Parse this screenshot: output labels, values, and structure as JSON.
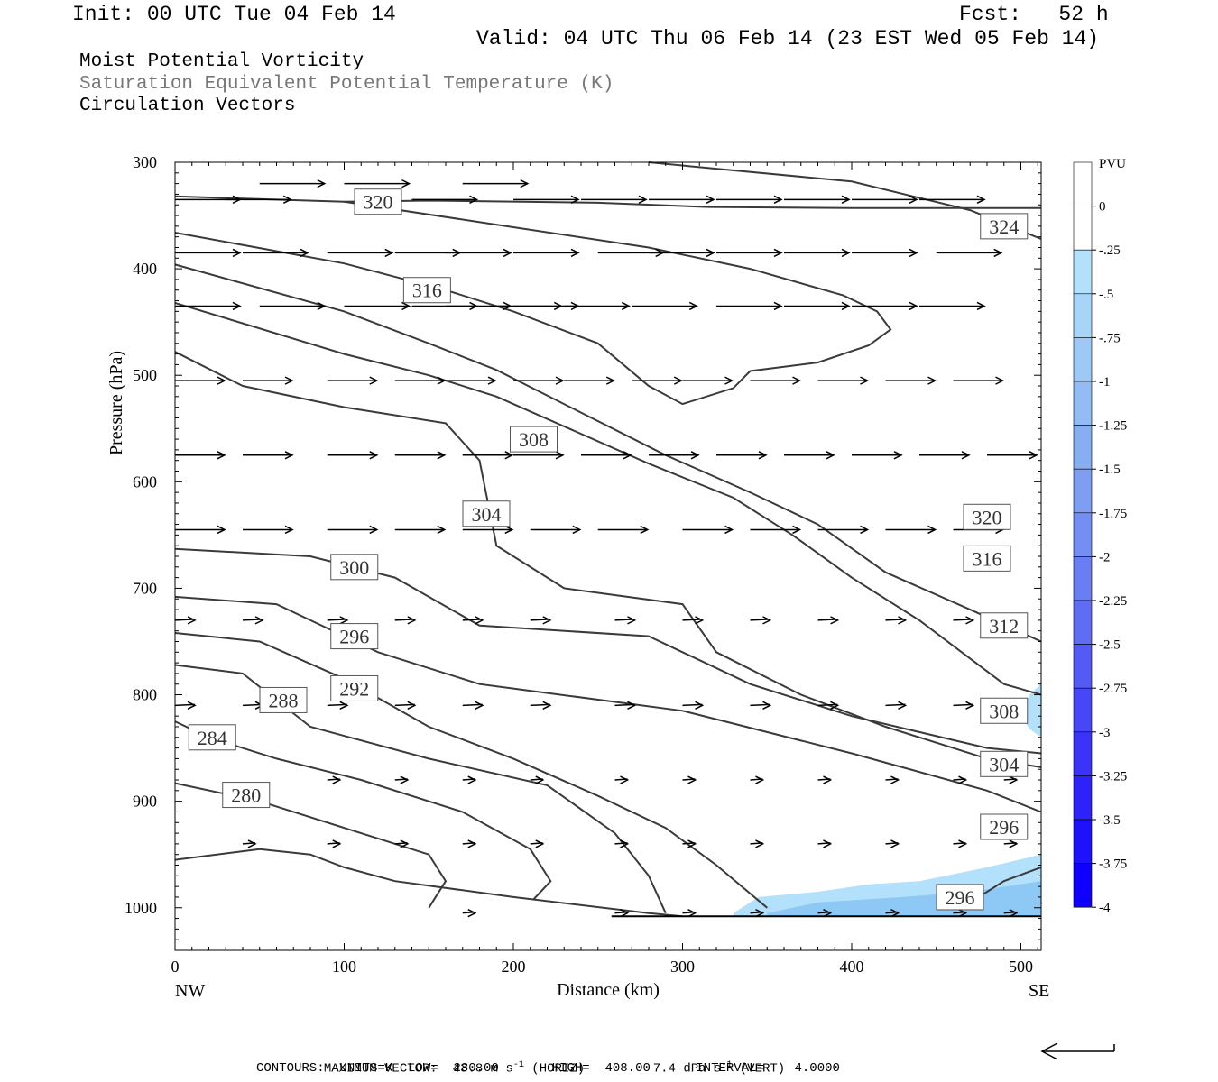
{
  "header": {
    "init": "Init: 00 UTC Tue 04 Feb 14",
    "fcst": "Fcst:   52 h",
    "valid": "Valid: 04 UTC Thu 06 Feb 14 (23 EST Wed 05 Feb 14)",
    "field1": "Moist Potential Vorticity",
    "field2": "Saturation Equivalent Potential Temperature (K)",
    "field3": "Circulation Vectors"
  },
  "footer": {
    "max_vector_label": "MAXIMUM VECTOR:",
    "max_h": "43.8 m s",
    "max_h_unit": "(HORIZ)",
    "max_v": "7.4 dPa s",
    "max_v_unit": "(VERT)",
    "contours": "CONTOURS:  UNITS=K  LOW=  280.00       HIGH=  408.00      INTERVAL=    4.0000"
  },
  "colors": {
    "contour": "#3a3a3a",
    "pv_light": "#b3e0fa",
    "pv_mid": "#8ec8f5"
  },
  "chart_data": {
    "type": "contour",
    "xlabel": "Distance (km)",
    "ylabel": "Pressure (hPa)",
    "x_endpoints": [
      "NW",
      "SE"
    ],
    "xlim": [
      0,
      512
    ],
    "ylim": [
      1040,
      300
    ],
    "xticks": [
      0,
      100,
      200,
      300,
      400,
      500
    ],
    "yticks": [
      300,
      400,
      500,
      600,
      700,
      800,
      900,
      1000
    ],
    "contour_labels": [
      {
        "text": "320",
        "x": 120,
        "p": 337
      },
      {
        "text": "324",
        "x": 490,
        "p": 360
      },
      {
        "text": "316",
        "x": 149,
        "p": 420
      },
      {
        "text": "308",
        "x": 212,
        "p": 560
      },
      {
        "text": "304",
        "x": 184,
        "p": 630
      },
      {
        "text": "320",
        "x": 480,
        "p": 633
      },
      {
        "text": "316",
        "x": 480,
        "p": 672
      },
      {
        "text": "300",
        "x": 106,
        "p": 680
      },
      {
        "text": "312",
        "x": 490,
        "p": 735
      },
      {
        "text": "296",
        "x": 106,
        "p": 745
      },
      {
        "text": "292",
        "x": 106,
        "p": 794
      },
      {
        "text": "288",
        "x": 64,
        "p": 805
      },
      {
        "text": "308",
        "x": 490,
        "p": 815
      },
      {
        "text": "284",
        "x": 22,
        "p": 840
      },
      {
        "text": "304",
        "x": 490,
        "p": 865
      },
      {
        "text": "280",
        "x": 42,
        "p": 894
      },
      {
        "text": "296",
        "x": 490,
        "p": 924
      },
      {
        "text": "296",
        "x": 464,
        "p": 990
      }
    ],
    "contours": [
      {
        "level": 320,
        "points": [
          [
            0,
            332
          ],
          [
            100,
            337
          ],
          [
            150,
            336
          ],
          [
            250,
            338
          ],
          [
            315,
            342
          ],
          [
            400,
            343
          ],
          [
            512,
            343
          ]
        ]
      },
      {
        "level": 324,
        "points": [
          [
            280,
            300
          ],
          [
            400,
            318
          ],
          [
            470,
            345
          ],
          [
            512,
            372
          ]
        ]
      },
      {
        "level": 316,
        "points": [
          [
            0,
            366
          ],
          [
            100,
            395
          ],
          [
            160,
            420
          ],
          [
            200,
            440
          ],
          [
            250,
            470
          ],
          [
            280,
            510
          ],
          [
            300,
            527
          ],
          [
            330,
            512
          ],
          [
            340,
            496
          ],
          [
            380,
            488
          ],
          [
            410,
            472
          ],
          [
            423,
            457
          ],
          [
            415,
            440
          ],
          [
            395,
            425
          ],
          [
            340,
            400
          ],
          [
            280,
            380
          ],
          [
            200,
            361
          ],
          [
            100,
            337
          ]
        ]
      },
      {
        "level": 312,
        "points": [
          [
            0,
            396
          ],
          [
            100,
            440
          ],
          [
            150,
            470
          ],
          [
            190,
            495
          ],
          [
            240,
            535
          ],
          [
            290,
            575
          ],
          [
            340,
            610
          ],
          [
            380,
            640
          ],
          [
            420,
            685
          ],
          [
            470,
            720
          ],
          [
            512,
            750
          ]
        ]
      },
      {
        "level": 308,
        "points": [
          [
            0,
            432
          ],
          [
            100,
            480
          ],
          [
            150,
            500
          ],
          [
            190,
            520
          ],
          [
            230,
            548
          ],
          [
            280,
            583
          ],
          [
            330,
            615
          ],
          [
            365,
            650
          ],
          [
            400,
            690
          ],
          [
            440,
            730
          ],
          [
            490,
            790
          ],
          [
            512,
            800
          ]
        ]
      },
      {
        "level": 304,
        "points": [
          [
            0,
            478
          ],
          [
            40,
            510
          ],
          [
            100,
            530
          ],
          [
            160,
            545
          ],
          [
            180,
            580
          ],
          [
            190,
            660
          ],
          [
            230,
            700
          ],
          [
            300,
            715
          ],
          [
            320,
            760
          ],
          [
            370,
            800
          ],
          [
            420,
            830
          ],
          [
            480,
            860
          ],
          [
            512,
            868
          ]
        ]
      },
      {
        "level": 300,
        "points": [
          [
            0,
            663
          ],
          [
            80,
            670
          ],
          [
            130,
            690
          ],
          [
            180,
            735
          ],
          [
            280,
            745
          ],
          [
            340,
            790
          ],
          [
            400,
            820
          ],
          [
            480,
            850
          ],
          [
            512,
            855
          ]
        ]
      },
      {
        "level": 296,
        "points": [
          [
            0,
            708
          ],
          [
            60,
            715
          ],
          [
            120,
            760
          ],
          [
            180,
            790
          ],
          [
            300,
            815
          ],
          [
            400,
            855
          ],
          [
            480,
            890
          ],
          [
            512,
            910
          ]
        ]
      },
      {
        "level": 292,
        "points": [
          [
            0,
            742
          ],
          [
            50,
            750
          ],
          [
            100,
            785
          ],
          [
            150,
            830
          ],
          [
            200,
            860
          ],
          [
            250,
            895
          ],
          [
            290,
            925
          ],
          [
            320,
            960
          ],
          [
            350,
            1000
          ]
        ]
      },
      {
        "level": 288,
        "points": [
          [
            0,
            772
          ],
          [
            40,
            780
          ],
          [
            80,
            830
          ],
          [
            150,
            860
          ],
          [
            220,
            885
          ],
          [
            260,
            930
          ],
          [
            280,
            970
          ],
          [
            290,
            1005
          ]
        ]
      },
      {
        "level": 284,
        "points": [
          [
            0,
            825
          ],
          [
            20,
            840
          ],
          [
            60,
            860
          ],
          [
            110,
            880
          ],
          [
            170,
            910
          ],
          [
            210,
            945
          ],
          [
            222,
            975
          ],
          [
            212,
            992
          ]
        ]
      },
      {
        "level": 280,
        "points": [
          [
            0,
            883
          ],
          [
            50,
            900
          ],
          [
            110,
            930
          ],
          [
            150,
            950
          ],
          [
            160,
            975
          ],
          [
            150,
            1000
          ]
        ]
      },
      {
        "level": 296,
        "points": [
          [
            465,
            1000
          ],
          [
            490,
            975
          ],
          [
            512,
            962
          ]
        ]
      },
      {
        "level": 296,
        "points": [
          [
            0,
            955
          ],
          [
            50,
            945
          ],
          [
            80,
            950
          ],
          [
            100,
            962
          ],
          [
            130,
            975
          ],
          [
            200,
            990
          ],
          [
            280,
            1005
          ],
          [
            300,
            1008
          ]
        ]
      }
    ],
    "pv_shading": [
      {
        "level": -0.25,
        "points": [
          [
            330,
            1005
          ],
          [
            345,
            990
          ],
          [
            380,
            985
          ],
          [
            410,
            978
          ],
          [
            440,
            975
          ],
          [
            480,
            962
          ],
          [
            512,
            950
          ],
          [
            512,
            1008
          ],
          [
            330,
            1008
          ]
        ]
      },
      {
        "level": -0.25,
        "points": [
          [
            500,
            820
          ],
          [
            505,
            800
          ],
          [
            512,
            790
          ],
          [
            512,
            840
          ],
          [
            505,
            832
          ]
        ]
      },
      {
        "level": -0.5,
        "points": [
          [
            350,
            1005
          ],
          [
            380,
            995
          ],
          [
            430,
            990
          ],
          [
            470,
            985
          ],
          [
            512,
            975
          ],
          [
            512,
            1008
          ],
          [
            350,
            1008
          ]
        ]
      }
    ],
    "vectors": [
      {
        "p": 320,
        "x": [
          50,
          100,
          170
        ]
      },
      {
        "p": 335,
        "x": [
          0,
          30,
          140,
          200,
          240,
          280,
          320,
          360,
          400,
          440,
          480
        ]
      },
      {
        "p": 385,
        "x": [
          0,
          40,
          90,
          130,
          160,
          200,
          250,
          280,
          320,
          360,
          400,
          450,
          490
        ]
      },
      {
        "p": 435,
        "x": [
          0,
          50,
          100,
          140,
          160,
          190,
          200,
          230,
          270,
          320,
          360,
          400,
          440,
          480
        ]
      },
      {
        "p": 505,
        "x": [
          0,
          40,
          90,
          130,
          160,
          200,
          230,
          270,
          300,
          340,
          380,
          420,
          460,
          490
        ]
      },
      {
        "p": 575,
        "x": [
          0,
          40,
          90,
          130,
          170,
          200,
          240,
          280,
          320,
          360,
          400,
          440,
          480
        ]
      },
      {
        "p": 645,
        "x": [
          0,
          40,
          90,
          130,
          170,
          210,
          250,
          300,
          340,
          380,
          420,
          460,
          490
        ]
      },
      {
        "p": 730,
        "x": [
          0,
          40,
          90,
          130,
          170,
          210,
          260,
          300,
          340,
          380,
          420,
          460,
          490
        ]
      },
      {
        "p": 810,
        "x": [
          0,
          40,
          90,
          130,
          170,
          210,
          260,
          300,
          340,
          380,
          420,
          460,
          490
        ]
      },
      {
        "p": 880,
        "x": [
          90,
          130,
          170,
          210,
          260,
          300,
          340,
          380,
          420,
          460,
          490
        ]
      },
      {
        "p": 940,
        "x": [
          40,
          90,
          130,
          170,
          210,
          260,
          300,
          340,
          380,
          420,
          460,
          490
        ]
      },
      {
        "p": 1005,
        "x": [
          170,
          260,
          300,
          340,
          380,
          420,
          460,
          490
        ]
      }
    ],
    "colorbar": {
      "title": "PVU",
      "labels": [
        "0",
        "-.25",
        "-.5",
        "-.75",
        "-1",
        "-1.25",
        "-1.5",
        "-1.75",
        "-2",
        "-2.25",
        "-2.5",
        "-2.75",
        "-3",
        "-3.25",
        "-3.5",
        "-3.75",
        "-4"
      ],
      "colors": [
        "#ffffff",
        "#ffffff",
        "#b3e0fa",
        "#a7d5f8",
        "#9cc9f5",
        "#92bcf3",
        "#88aef2",
        "#7e9ef2",
        "#748ff3",
        "#6a7ef4",
        "#5f6df5",
        "#545af6",
        "#4847f7",
        "#3b34f8",
        "#2d22fa",
        "#1e11fc",
        "#0f00fe"
      ]
    },
    "max_vector_arrow": "leftward reference arrow"
  }
}
